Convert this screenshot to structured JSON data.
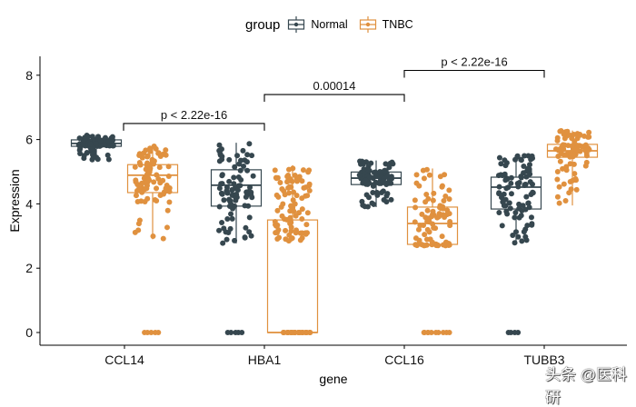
{
  "chart_data": {
    "type": "boxplot",
    "title": "",
    "xlabel": "gene",
    "ylabel": "Expression",
    "ylim": [
      -0.4,
      8.6
    ],
    "yticks": [
      0,
      2,
      4,
      6,
      8
    ],
    "grid": false,
    "categories": [
      "CCL14",
      "HBA1",
      "CCL16",
      "TUBB3"
    ],
    "legend": {
      "title": "group",
      "position": "top",
      "entries": [
        {
          "name": "Normal",
          "color": "#36474f"
        },
        {
          "name": "TNBC",
          "color": "#e0913f"
        }
      ]
    },
    "series": [
      {
        "name": "Normal",
        "color": "#36474f",
        "boxes": [
          {
            "min": 5.35,
            "q1": 5.79,
            "median": 5.88,
            "q3": 5.99,
            "max": 6.15,
            "zeros": 0
          },
          {
            "min": 2.77,
            "q1": 3.93,
            "median": 4.58,
            "q3": 5.06,
            "max": 5.9,
            "zeros": 5
          },
          {
            "min": 3.9,
            "q1": 4.6,
            "median": 4.8,
            "q3": 4.99,
            "max": 5.35,
            "zeros": 0
          },
          {
            "min": 2.77,
            "q1": 3.84,
            "median": 4.52,
            "q3": 4.83,
            "max": 5.54,
            "zeros": 4
          }
        ]
      },
      {
        "name": "TNBC",
        "color": "#e0913f",
        "boxes": [
          {
            "min": 2.9,
            "q1": 4.35,
            "median": 4.89,
            "q3": 5.22,
            "max": 5.8,
            "zeros": 5
          },
          {
            "min": 0,
            "q1": 0,
            "median": 0,
            "q3": 3.5,
            "max": 5.2,
            "zeros": 30
          },
          {
            "min": 2.7,
            "q1": 2.74,
            "median": 3.39,
            "q3": 3.9,
            "max": 5.1,
            "zeros": 10
          },
          {
            "min": 3.95,
            "q1": 5.45,
            "median": 5.65,
            "q3": 5.85,
            "max": 6.28,
            "zeros": 0
          }
        ]
      }
    ],
    "comparisons": [
      {
        "from": "CCL14 TNBC",
        "to": "HBA1 Normal",
        "label": "p < 2.22e-16",
        "y": 6.5
      },
      {
        "from": "HBA1 Normal",
        "to": "CCL16 Normal",
        "label": "0.00014",
        "y": 7.4
      },
      {
        "from": "CCL16 Normal",
        "to": "TUBB3 Normal",
        "label": "p < 2.22e-16",
        "y": 8.15
      }
    ]
  },
  "watermark": "头条 @医科研"
}
